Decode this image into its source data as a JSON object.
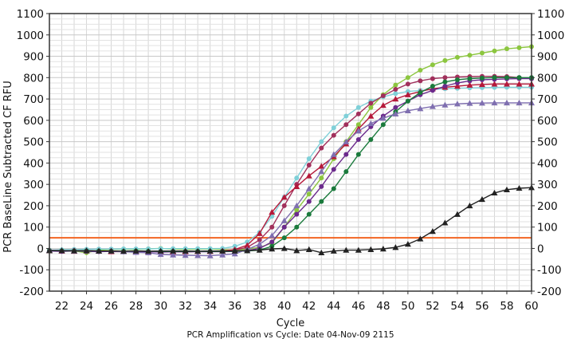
{
  "chart_data": {
    "type": "line",
    "title": "PCR Amplification vs Cycle: Date 04-Nov-09 2115",
    "xlabel": "Cycle",
    "ylabel": "PCR BaseLine Subtracted CF RFU",
    "xlim": [
      21,
      60
    ],
    "ylim": [
      -200,
      1100
    ],
    "x_ticks": [
      22,
      24,
      26,
      28,
      30,
      32,
      34,
      36,
      38,
      40,
      42,
      44,
      46,
      48,
      50,
      52,
      54,
      56,
      58,
      60
    ],
    "y_ticks": [
      -200,
      -100,
      0,
      100,
      200,
      300,
      400,
      500,
      600,
      700,
      800,
      900,
      1000,
      1100
    ],
    "grid": true,
    "threshold": {
      "value": 50,
      "color": "#f26522"
    },
    "x": [
      21,
      22,
      23,
      24,
      25,
      26,
      27,
      28,
      29,
      30,
      31,
      32,
      33,
      34,
      35,
      36,
      37,
      38,
      39,
      40,
      41,
      42,
      43,
      44,
      45,
      46,
      47,
      48,
      49,
      50,
      51,
      52,
      53,
      54,
      55,
      56,
      57,
      58,
      59,
      60
    ],
    "series": [
      {
        "color": "#8cc63f",
        "marker": "circle",
        "values": [
          -10,
          -8,
          -12,
          -20,
          -8,
          -5,
          -3,
          -5,
          -2,
          0,
          -3,
          -4,
          -3,
          -2,
          -5,
          -8,
          -3,
          5,
          25,
          100,
          180,
          255,
          330,
          420,
          500,
          580,
          660,
          720,
          765,
          800,
          835,
          860,
          880,
          895,
          905,
          915,
          925,
          935,
          940,
          945
        ]
      },
      {
        "color": "#7fd0d8",
        "marker": "circle",
        "values": [
          -8,
          -6,
          -5,
          -4,
          -3,
          -3,
          -2,
          -2,
          -2,
          -1,
          -1,
          -1,
          -1,
          -1,
          0,
          10,
          30,
          75,
          150,
          240,
          330,
          420,
          500,
          565,
          620,
          660,
          690,
          710,
          725,
          735,
          740,
          745,
          748,
          750,
          752,
          753,
          754,
          755,
          755,
          755
        ]
      },
      {
        "color": "#a1305c",
        "marker": "circle",
        "values": [
          -10,
          -12,
          -10,
          -13,
          -14,
          -12,
          -15,
          -14,
          -15,
          -16,
          -14,
          -15,
          -14,
          -14,
          -12,
          -8,
          5,
          40,
          100,
          200,
          300,
          390,
          470,
          530,
          580,
          630,
          680,
          715,
          745,
          770,
          785,
          795,
          800,
          803,
          805,
          806,
          806,
          805,
          800,
          795
        ]
      },
      {
        "color": "#b5193a",
        "marker": "triangle",
        "values": [
          -10,
          -12,
          -13,
          -11,
          -12,
          -15,
          -14,
          -16,
          -15,
          -14,
          -15,
          -15,
          -14,
          -14,
          -12,
          -5,
          15,
          70,
          170,
          240,
          290,
          340,
          385,
          430,
          490,
          560,
          620,
          670,
          700,
          720,
          735,
          748,
          755,
          760,
          765,
          768,
          770,
          770,
          770,
          770
        ]
      },
      {
        "color": "#6b2a8c",
        "marker": "circle",
        "values": [
          -12,
          -14,
          -12,
          -14,
          -15,
          -14,
          -16,
          -16,
          -15,
          -17,
          -16,
          -16,
          -15,
          -15,
          -15,
          -14,
          -10,
          0,
          30,
          100,
          160,
          220,
          290,
          370,
          440,
          510,
          570,
          620,
          660,
          690,
          720,
          740,
          760,
          775,
          785,
          790,
          792,
          794,
          795,
          795
        ]
      },
      {
        "color": "#1a7a3c",
        "marker": "circle",
        "values": [
          -10,
          -11,
          -12,
          -11,
          -12,
          -13,
          -13,
          -12,
          -13,
          -14,
          -14,
          -14,
          -13,
          -14,
          -14,
          -13,
          -12,
          -8,
          10,
          50,
          100,
          160,
          220,
          280,
          360,
          440,
          510,
          580,
          640,
          690,
          730,
          760,
          780,
          790,
          795,
          798,
          800,
          800,
          800,
          800
        ]
      },
      {
        "color": "#7f6fb0",
        "marker": "triangle",
        "values": [
          -8,
          -10,
          -12,
          -10,
          -12,
          -12,
          -15,
          -18,
          -20,
          -28,
          -30,
          -32,
          -33,
          -34,
          -30,
          -25,
          -5,
          20,
          60,
          130,
          200,
          280,
          360,
          440,
          500,
          550,
          585,
          610,
          630,
          645,
          655,
          665,
          672,
          677,
          680,
          681,
          682,
          682,
          682,
          682
        ]
      },
      {
        "color": "#222222",
        "marker": "triangle",
        "values": [
          -10,
          -10,
          -11,
          -10,
          -12,
          -12,
          -13,
          -12,
          -13,
          -12,
          -12,
          -12,
          -13,
          -12,
          -12,
          -12,
          -10,
          -8,
          -2,
          0,
          -10,
          -5,
          -20,
          -12,
          -8,
          -8,
          -5,
          -2,
          5,
          20,
          45,
          80,
          120,
          160,
          200,
          230,
          260,
          275,
          282,
          285
        ]
      }
    ]
  }
}
